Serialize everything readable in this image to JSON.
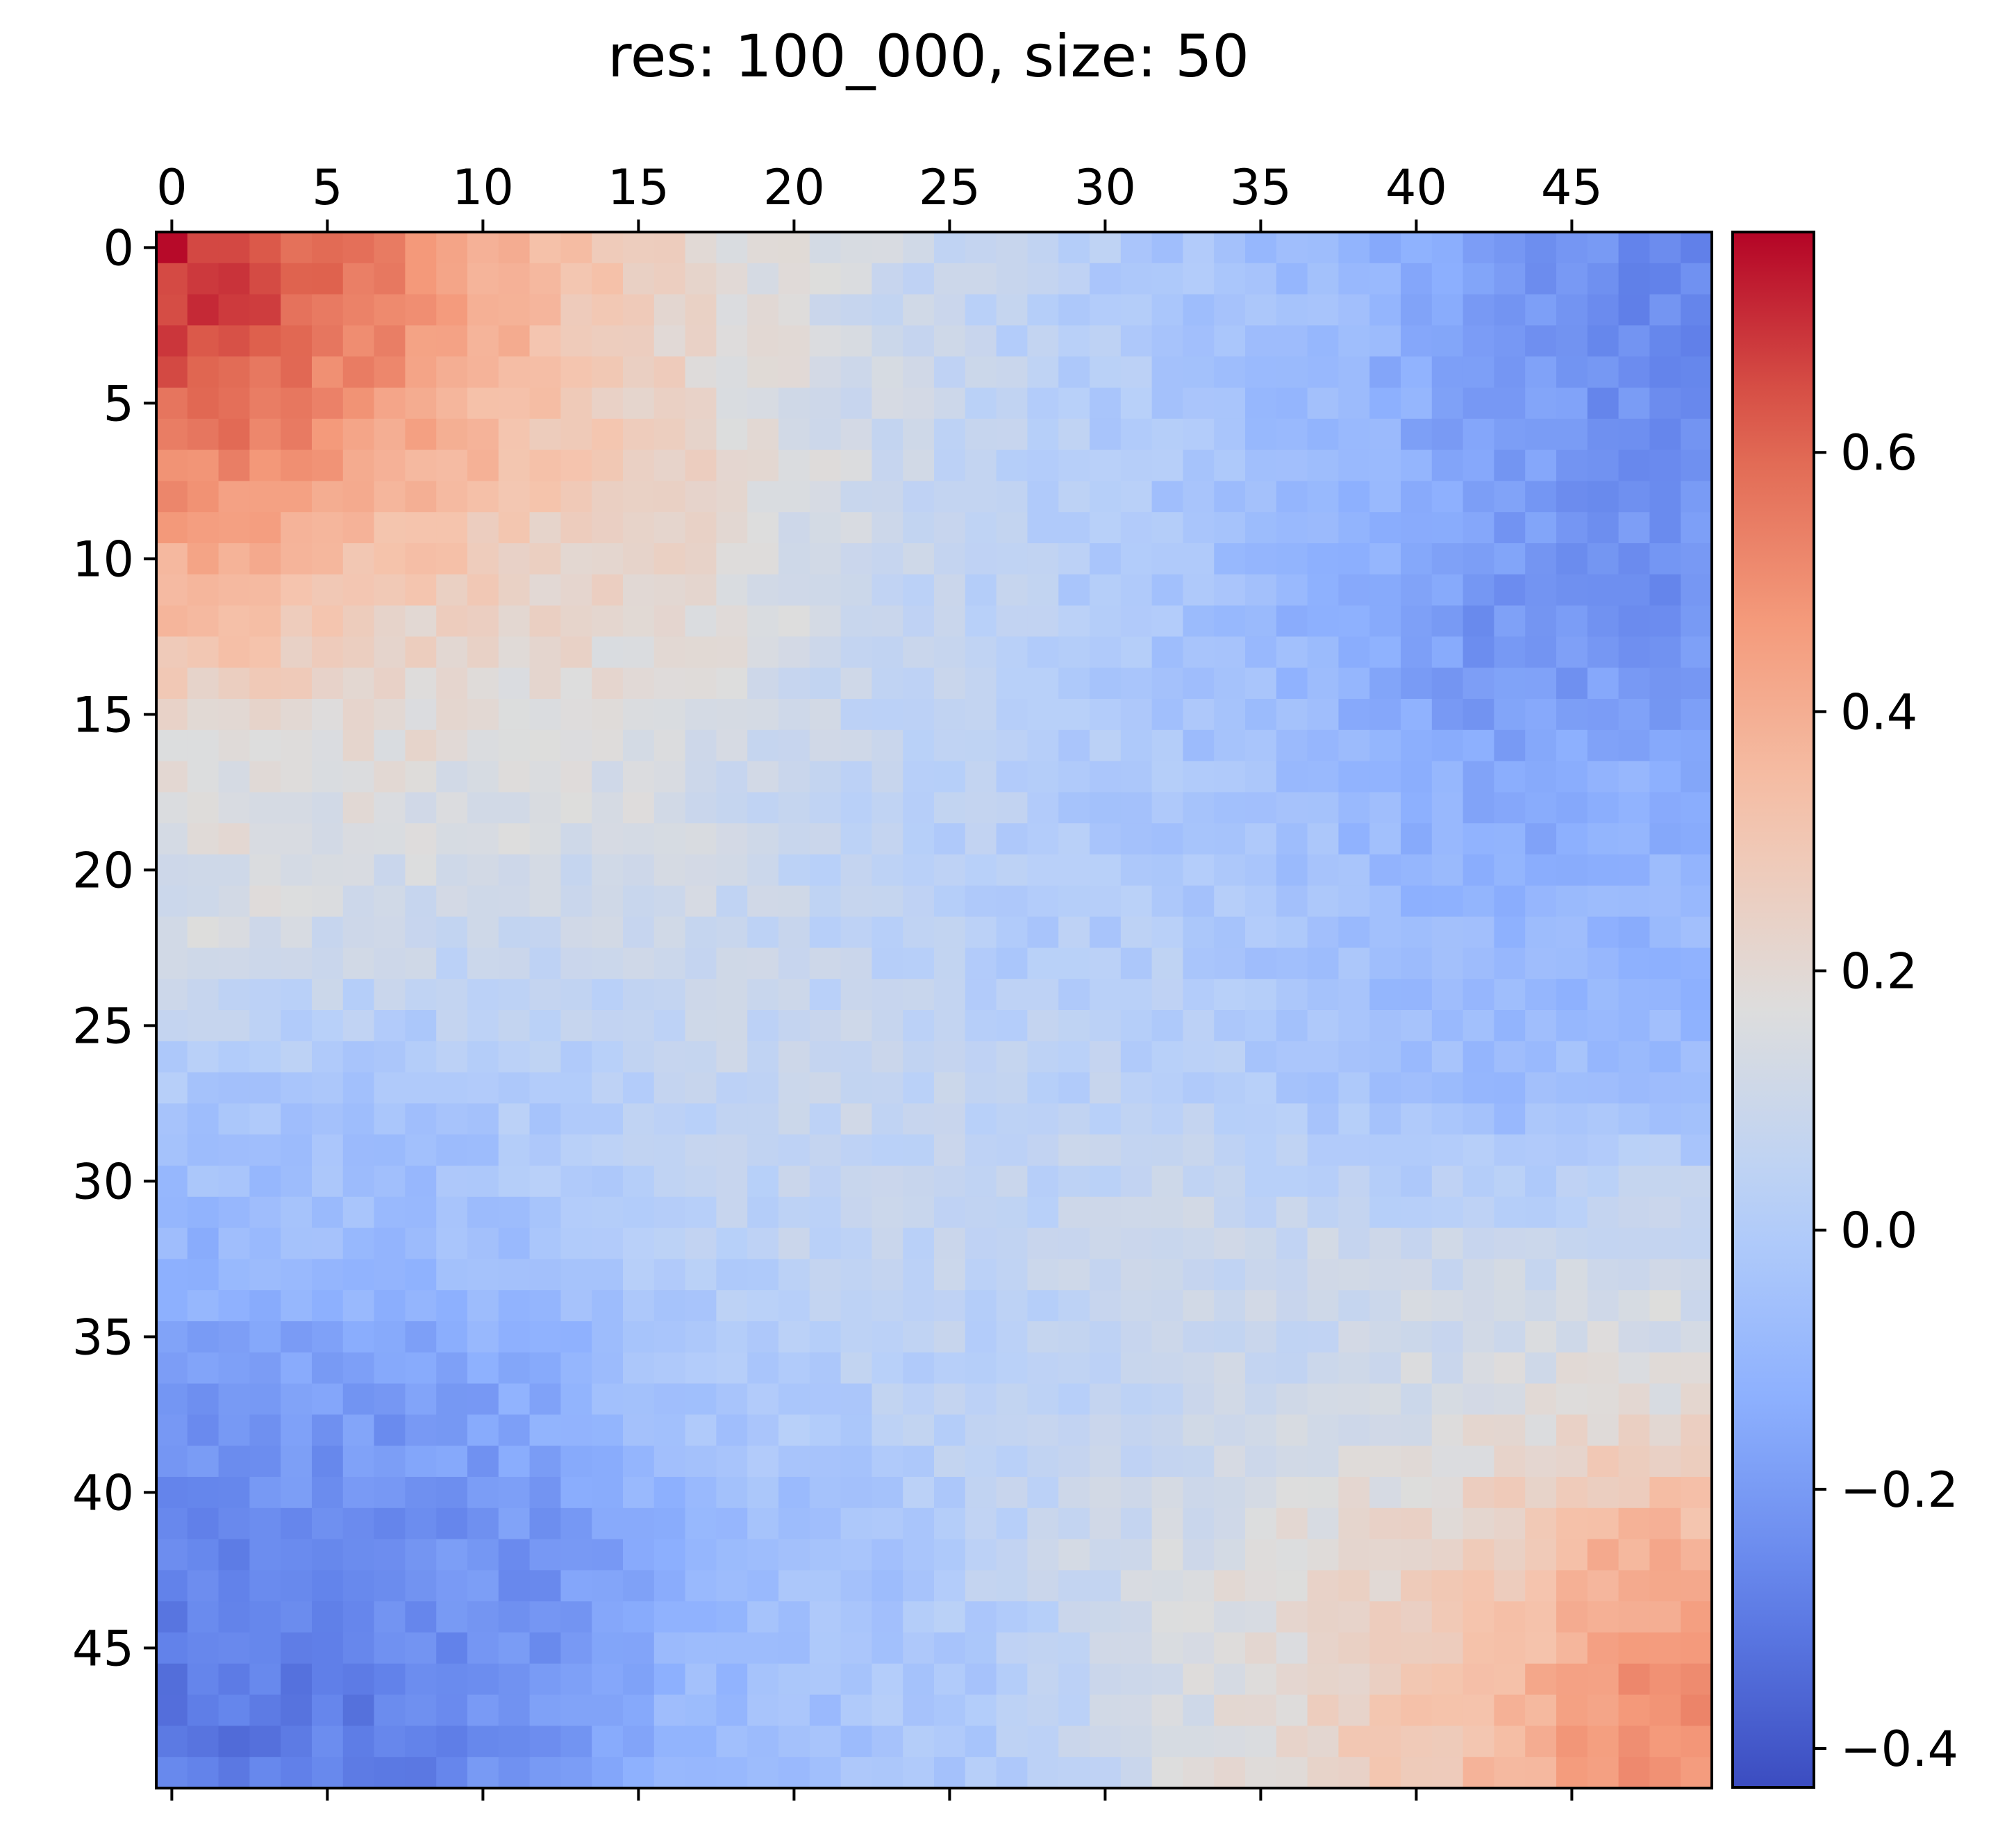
{
  "chart_data": {
    "type": "heatmap",
    "title": "res: 100_000, size: 50",
    "xlabel": "",
    "ylabel": "",
    "grid": false,
    "rows": 50,
    "cols": 50,
    "x_ticks": [
      0,
      5,
      10,
      15,
      20,
      25,
      30,
      35,
      40,
      45
    ],
    "x_tick_labels": [
      "0",
      "5",
      "10",
      "15",
      "20",
      "25",
      "30",
      "35",
      "40",
      "45"
    ],
    "x_ticks_position": "top",
    "y_ticks": [
      0,
      5,
      10,
      15,
      20,
      25,
      30,
      35,
      40,
      45
    ],
    "y_tick_labels": [
      "0",
      "5",
      "10",
      "15",
      "20",
      "25",
      "30",
      "35",
      "40",
      "45"
    ],
    "colormap": "coolwarm",
    "colorbar": {
      "vmin": -0.43,
      "vmax": 0.77,
      "ticks": [
        -0.4,
        -0.2,
        0.0,
        0.2,
        0.4,
        0.6
      ],
      "tick_labels": [
        "−0.4",
        "−0.2",
        "0.0",
        "0.2",
        "0.4",
        "0.6"
      ],
      "placement": "right"
    },
    "block_values": [
      [
        0.68,
        0.52,
        0.35,
        0.2,
        0.12,
        0.05,
        -0.02,
        -0.08,
        -0.18,
        -0.26
      ],
      [
        0.52,
        0.42,
        0.3,
        0.22,
        0.12,
        0.04,
        -0.02,
        -0.09,
        -0.18,
        -0.22
      ],
      [
        0.33,
        0.25,
        0.22,
        0.18,
        0.1,
        0.03,
        -0.04,
        -0.12,
        -0.22,
        -0.24
      ],
      [
        0.18,
        0.17,
        0.16,
        0.13,
        0.06,
        0.02,
        -0.03,
        -0.07,
        -0.16,
        -0.14
      ],
      [
        0.13,
        0.1,
        0.09,
        0.09,
        0.05,
        0.01,
        0.0,
        -0.05,
        -0.1,
        -0.1
      ],
      [
        -0.02,
        -0.04,
        0.01,
        0.07,
        0.08,
        0.04,
        0.04,
        -0.03,
        -0.08,
        -0.07
      ],
      [
        -0.1,
        -0.08,
        -0.04,
        0.02,
        0.07,
        0.05,
        0.1,
        0.09,
        0.07,
        0.1
      ],
      [
        -0.2,
        -0.2,
        -0.14,
        -0.04,
        0.02,
        0.03,
        0.08,
        0.1,
        0.16,
        0.18
      ],
      [
        -0.26,
        -0.24,
        -0.22,
        -0.1,
        -0.05,
        0.06,
        0.13,
        0.2,
        0.26,
        0.4
      ],
      [
        -0.3,
        -0.28,
        -0.22,
        -0.08,
        -0.04,
        0.0,
        0.13,
        0.24,
        0.34,
        0.5
      ]
    ]
  }
}
